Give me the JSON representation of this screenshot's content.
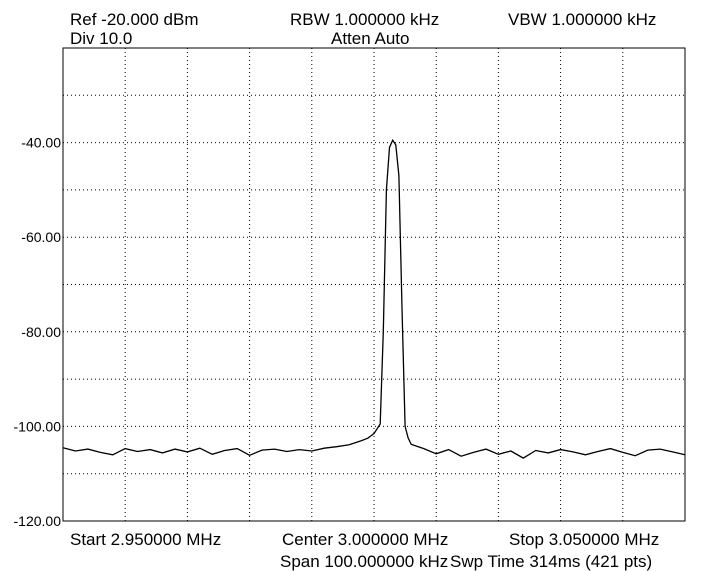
{
  "header": {
    "ref": "Ref -20.000 dBm",
    "div": "Div 10.0",
    "rbw": "RBW 1.000000 kHz",
    "atten": "Atten Auto",
    "vbw": "VBW 1.000000 kHz"
  },
  "footer": {
    "start": "Start 2.950000 MHz",
    "center": "Center 3.000000 MHz",
    "stop": "Stop 3.050000 MHz",
    "span": "Span 100.000000 kHz",
    "sweep": "Swp Time 314ms (421 pts)"
  },
  "chart_data": {
    "type": "line",
    "title": "",
    "xlabel": "",
    "ylabel": "",
    "x_unit": "MHz",
    "y_unit": "dBm",
    "xlim": [
      2.95,
      3.05
    ],
    "ylim": [
      -120,
      -20
    ],
    "grid": true,
    "legend": "none",
    "y_ticks": [
      -40,
      -60,
      -80,
      -100,
      -120
    ],
    "y_tick_labels": [
      "-40.00",
      "-60.00",
      "-80.00",
      "-100.00",
      "-120.00"
    ],
    "x_divisions": 10,
    "y_divisions": 10,
    "trace_color": "#000000",
    "grid_color": "#000000",
    "series": [
      {
        "x": [
          2.95,
          2.952,
          2.954,
          2.956,
          2.958,
          2.96,
          2.962,
          2.964,
          2.966,
          2.968,
          2.97,
          2.972,
          2.974,
          2.976,
          2.978,
          2.98,
          2.982,
          2.984,
          2.986,
          2.988,
          2.99,
          2.992,
          2.994,
          2.996,
          2.998,
          2.999,
          2.9995,
          3.0,
          3.0005,
          3.001,
          3.0015,
          3.002,
          3.0025,
          3.003,
          3.0035,
          3.004,
          3.0045,
          3.005,
          3.0055,
          3.006,
          3.008,
          3.01,
          3.012,
          3.014,
          3.016,
          3.018,
          3.02,
          3.022,
          3.024,
          3.026,
          3.028,
          3.03,
          3.032,
          3.034,
          3.036,
          3.038,
          3.04,
          3.042,
          3.044,
          3.046,
          3.048,
          3.05
        ],
        "y": [
          -104.5,
          -105.2,
          -104.8,
          -105.5,
          -106.0,
          -104.7,
          -105.3,
          -104.9,
          -105.6,
          -104.8,
          -105.4,
          -104.6,
          -105.9,
          -105.1,
          -104.7,
          -106.1,
          -105.0,
          -104.8,
          -105.3,
          -104.9,
          -105.2,
          -104.6,
          -104.3,
          -103.9,
          -103.0,
          -102.5,
          -102.0,
          -101.5,
          -100.5,
          -99.5,
          -80.0,
          -50.0,
          -41.0,
          -39.5,
          -40.5,
          -47.0,
          -75.0,
          -100.0,
          -102.5,
          -103.8,
          -104.7,
          -105.8,
          -104.9,
          -106.3,
          -105.5,
          -104.8,
          -105.9,
          -105.2,
          -106.7,
          -105.1,
          -105.6,
          -104.9,
          -105.4,
          -106.0,
          -105.3,
          -104.7,
          -105.5,
          -106.2,
          -105.0,
          -104.8,
          -105.4,
          -106.0
        ]
      }
    ]
  }
}
